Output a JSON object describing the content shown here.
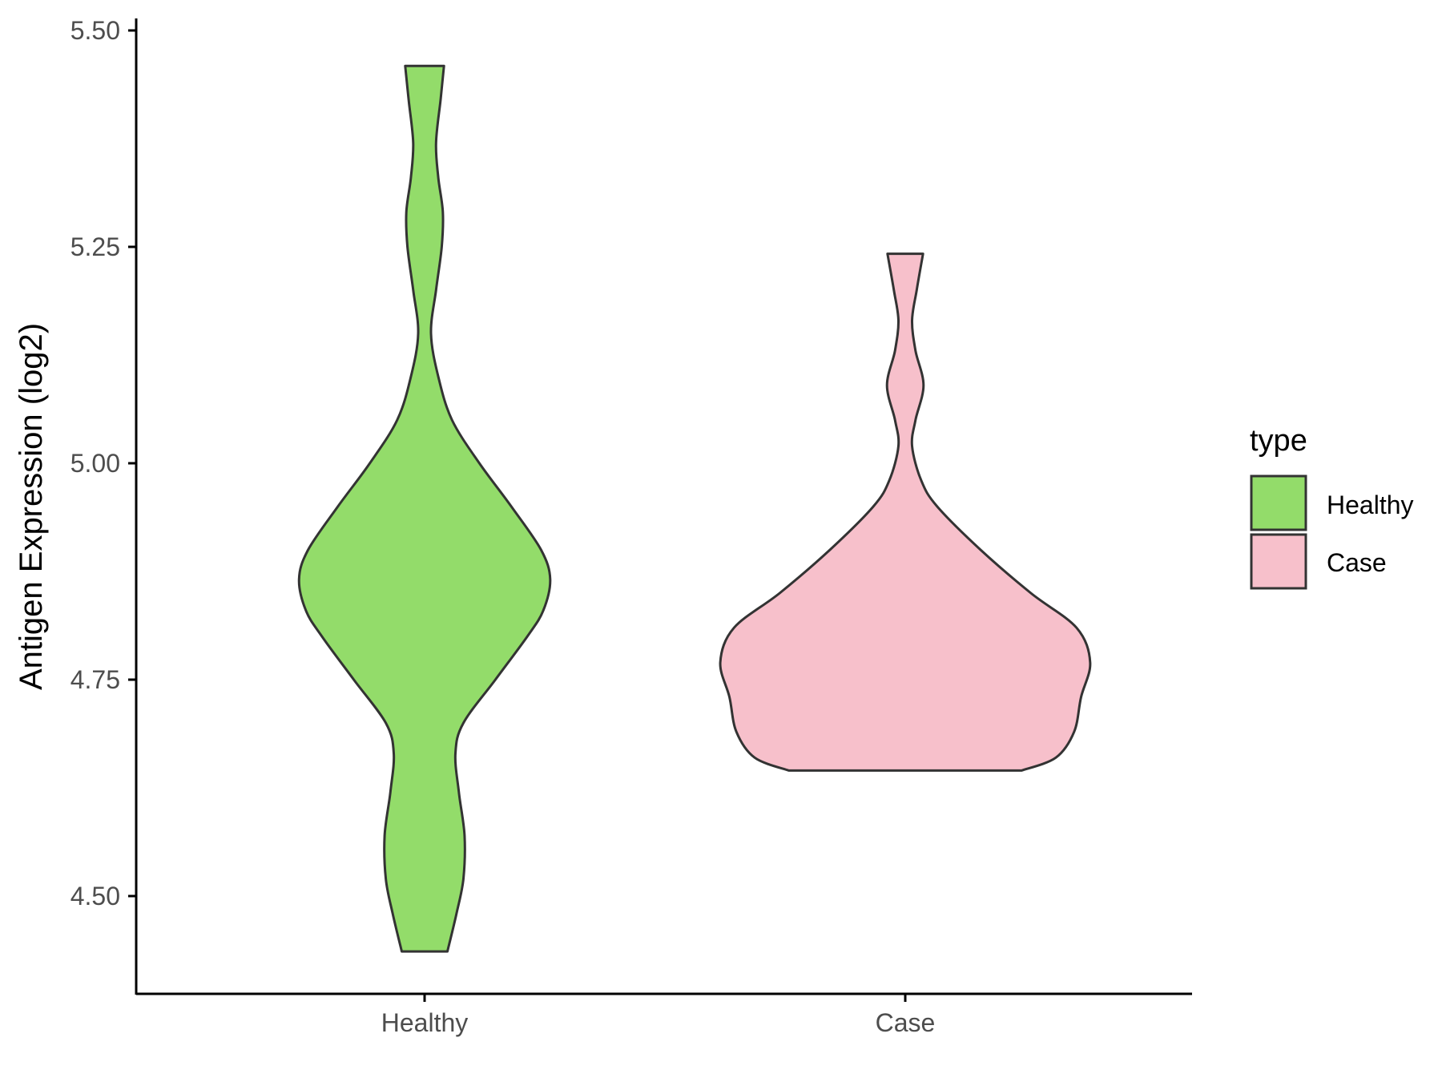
{
  "chart_data": {
    "type": "violin",
    "title": "",
    "xlabel": "",
    "ylabel": "Antigen Expression (log2)",
    "ylim": [
      4.385,
      5.51
    ],
    "yticks": [
      4.5,
      4.75,
      5.0,
      5.25,
      5.5
    ],
    "ytick_labels": [
      "4.50",
      "4.75",
      "5.00",
      "5.25",
      "5.50"
    ],
    "categories": [
      "Healthy",
      "Case"
    ],
    "grid": false,
    "legend": {
      "title": "type",
      "position": "right",
      "items": [
        {
          "label": "Healthy",
          "color": "#93DC6A"
        },
        {
          "label": "Case",
          "color": "#F7C0CB"
        }
      ]
    },
    "outline_color": "#333333",
    "series": [
      {
        "name": "Healthy",
        "color": "#93DC6A",
        "min": 4.436,
        "max": 5.459,
        "density_profile": [
          {
            "y": 4.436,
            "w": 0.1
          },
          {
            "y": 4.48,
            "w": 0.14
          },
          {
            "y": 4.52,
            "w": 0.17
          },
          {
            "y": 4.57,
            "w": 0.175
          },
          {
            "y": 4.62,
            "w": 0.15
          },
          {
            "y": 4.665,
            "w": 0.135
          },
          {
            "y": 4.7,
            "w": 0.17
          },
          {
            "y": 4.75,
            "w": 0.31
          },
          {
            "y": 4.8,
            "w": 0.45
          },
          {
            "y": 4.83,
            "w": 0.52
          },
          {
            "y": 4.866,
            "w": 0.55
          },
          {
            "y": 4.9,
            "w": 0.51
          },
          {
            "y": 4.95,
            "w": 0.38
          },
          {
            "y": 5.0,
            "w": 0.24
          },
          {
            "y": 5.05,
            "w": 0.12
          },
          {
            "y": 5.1,
            "w": 0.06
          },
          {
            "y": 5.15,
            "w": 0.028
          },
          {
            "y": 5.2,
            "w": 0.05
          },
          {
            "y": 5.25,
            "w": 0.075
          },
          {
            "y": 5.29,
            "w": 0.08
          },
          {
            "y": 5.33,
            "w": 0.06
          },
          {
            "y": 5.37,
            "w": 0.05
          },
          {
            "y": 5.42,
            "w": 0.07
          },
          {
            "y": 5.459,
            "w": 0.085
          }
        ]
      },
      {
        "name": "Case",
        "color": "#F7C0CB",
        "min": 4.645,
        "max": 5.242,
        "density_profile": [
          {
            "y": 4.645,
            "w": 0.51
          },
          {
            "y": 4.66,
            "w": 0.66
          },
          {
            "y": 4.69,
            "w": 0.74
          },
          {
            "y": 4.73,
            "w": 0.77
          },
          {
            "y": 4.77,
            "w": 0.81
          },
          {
            "y": 4.81,
            "w": 0.75
          },
          {
            "y": 4.85,
            "w": 0.55
          },
          {
            "y": 4.9,
            "w": 0.33
          },
          {
            "y": 4.95,
            "w": 0.14
          },
          {
            "y": 4.98,
            "w": 0.07
          },
          {
            "y": 5.02,
            "w": 0.03
          },
          {
            "y": 5.05,
            "w": 0.045
          },
          {
            "y": 5.09,
            "w": 0.08
          },
          {
            "y": 5.13,
            "w": 0.045
          },
          {
            "y": 5.165,
            "w": 0.03
          },
          {
            "y": 5.2,
            "w": 0.05
          },
          {
            "y": 5.242,
            "w": 0.078
          }
        ]
      }
    ]
  }
}
